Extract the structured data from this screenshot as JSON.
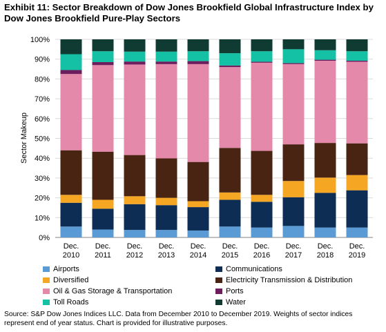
{
  "title": "Exhibit 11: Sector Breakdown of Dow Jones Brookfield Global Infrastructure Index by Dow Jones Brookfield Pure-Play Sectors",
  "source_note": "Source: S&P Dow Jones Indices LLC.  Data from December 2010 to December 2019.  Weights of sector indices represent end of year status.  Chart is provided for illustrative purposes.",
  "chart_data": {
    "type": "bar",
    "stacked": true,
    "title": "Exhibit 11: Sector Breakdown of Dow Jones Brookfield Global Infrastructure Index by Dow Jones Brookfield Pure-Play Sectors",
    "xlabel": "",
    "ylabel": "Sector Makeup",
    "ylim": [
      0,
      100
    ],
    "yticks": [
      "0%",
      "10%",
      "20%",
      "30%",
      "40%",
      "50%",
      "60%",
      "70%",
      "80%",
      "90%",
      "100%"
    ],
    "categories": [
      [
        "Dec.",
        "2010"
      ],
      [
        "Dec.",
        "2011"
      ],
      [
        "Dec.",
        "2012"
      ],
      [
        "Dec.",
        "2013"
      ],
      [
        "Dec.",
        "2014"
      ],
      [
        "Dec.",
        "2015"
      ],
      [
        "Dec.",
        "2016"
      ],
      [
        "Dec.",
        "2017"
      ],
      [
        "Dec.",
        "2018"
      ],
      [
        "Dec.",
        "2019"
      ]
    ],
    "legend_position": "bottom",
    "series": [
      {
        "name": "Airports",
        "color": "#5b9bd5",
        "values": [
          5.5,
          4,
          3.8,
          3.8,
          3.5,
          5.5,
          5,
          5.8,
          5,
          5
        ]
      },
      {
        "name": "Communications",
        "color": "#0d2d54",
        "values": [
          12,
          10.5,
          13,
          12.5,
          11.8,
          13.5,
          13,
          14.5,
          17.5,
          18.8
        ]
      },
      {
        "name": "Diversified",
        "color": "#f5a623",
        "values": [
          4,
          4.5,
          4,
          3.7,
          3,
          3.7,
          3.5,
          8.2,
          7.7,
          7.7
        ]
      },
      {
        "name": "Electricity Transmission & Distribution",
        "color": "#4a2413",
        "values": [
          22.5,
          24.3,
          20.8,
          19.9,
          19.8,
          22.5,
          22.2,
          18.5,
          17.5,
          16
        ]
      },
      {
        "name": "Oil & Gas Storage & Transportation",
        "color": "#e589ab",
        "values": [
          38.5,
          43.7,
          45.7,
          47.6,
          49.4,
          40.8,
          44.5,
          40.5,
          41.5,
          41.2
        ]
      },
      {
        "name": "Ports",
        "color": "#6d1d5e",
        "values": [
          2,
          1.5,
          1.5,
          1.3,
          1.5,
          0.8,
          0.5,
          0.5,
          0.5,
          0.5
        ]
      },
      {
        "name": "Toll Roads",
        "color": "#14c1a4",
        "values": [
          8,
          5.5,
          5,
          5,
          5,
          6.2,
          5.3,
          7,
          4.8,
          4.8
        ]
      },
      {
        "name": "Water",
        "color": "#0f3b33",
        "values": [
          7.5,
          6,
          6.2,
          6.2,
          6,
          7,
          6,
          5,
          5.5,
          6
        ]
      }
    ]
  }
}
